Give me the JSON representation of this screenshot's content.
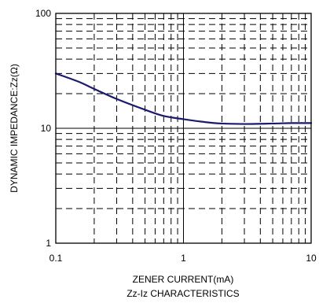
{
  "chart_data": {
    "type": "line",
    "x_scale": "log",
    "y_scale": "log",
    "xlim": [
      0.1,
      10
    ],
    "ylim": [
      1,
      100
    ],
    "x_ticks": [
      {
        "value": 0.1,
        "label": "0.1"
      },
      {
        "value": 1,
        "label": "1"
      },
      {
        "value": 10,
        "label": "10"
      }
    ],
    "y_ticks": [
      {
        "value": 1,
        "label": "1"
      },
      {
        "value": 10,
        "label": "10"
      },
      {
        "value": 100,
        "label": "100"
      }
    ],
    "xlabel": "ZENER CURRENT(mA)",
    "subtitle": "Zz-Iz CHARACTERISTICS",
    "ylabel": "DYNAMIC IMPEDANCE:Zz(Ω)",
    "grid": {
      "major": "solid",
      "minor": "dashed"
    },
    "series": [
      {
        "color": "#1a1a6e",
        "x": [
          0.1,
          0.15,
          0.2,
          0.3,
          0.5,
          0.7,
          1.0,
          1.5,
          2.0,
          3.0,
          5.0,
          7.0,
          10.0
        ],
        "y": [
          30,
          25.5,
          22,
          18,
          14.5,
          12.8,
          12,
          11.3,
          11,
          10.9,
          11,
          11.1,
          11.1
        ]
      }
    ]
  }
}
